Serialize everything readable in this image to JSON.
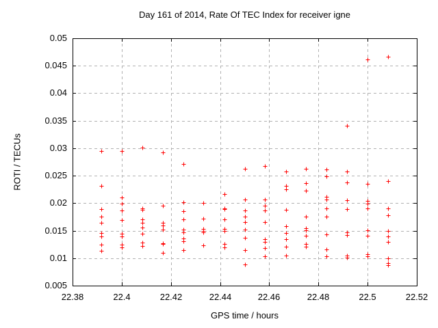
{
  "chart_data": {
    "type": "scatter",
    "title": "Day 161 of 2014, Rate Of TEC Index for receiver igne",
    "xlabel": "GPS time / hours",
    "ylabel": "ROTI / TECUs",
    "xlim": [
      22.38,
      22.52
    ],
    "ylim": [
      0.005,
      0.05
    ],
    "x_ticks": [
      22.38,
      22.4,
      22.42,
      22.44,
      22.46,
      22.48,
      22.5,
      22.52
    ],
    "x_tick_labels": [
      "22.38",
      "22.4",
      "22.42",
      "22.44",
      "22.46",
      "22.48",
      "22.5",
      "22.52"
    ],
    "y_ticks": [
      0.005,
      0.01,
      0.015,
      0.02,
      0.025,
      0.03,
      0.035,
      0.04,
      0.045,
      0.05
    ],
    "y_tick_labels": [
      "0.005",
      "0.01",
      "0.015",
      "0.02",
      "0.025",
      "0.03",
      "0.035",
      "0.04",
      "0.045",
      "0.05"
    ],
    "grid": true,
    "legend": "none",
    "marker": {
      "shape": "plus",
      "color": "#ff0000",
      "size": 7
    },
    "grid_color": "#b0b0b0",
    "border_color": "#000000",
    "series": [
      {
        "name": "ROTI",
        "points": [
          [
            22.3917,
            0.0295
          ],
          [
            22.3917,
            0.0231
          ],
          [
            22.3917,
            0.0189
          ],
          [
            22.3917,
            0.0176
          ],
          [
            22.3917,
            0.0164
          ],
          [
            22.3917,
            0.0146
          ],
          [
            22.3917,
            0.0139
          ],
          [
            22.3917,
            0.0125
          ],
          [
            22.3917,
            0.0113
          ],
          [
            22.4,
            0.0295
          ],
          [
            22.4,
            0.021
          ],
          [
            22.4,
            0.0199
          ],
          [
            22.4,
            0.0187
          ],
          [
            22.4,
            0.0169
          ],
          [
            22.4,
            0.0145
          ],
          [
            22.4,
            0.014
          ],
          [
            22.4,
            0.0125
          ],
          [
            22.4,
            0.012
          ],
          [
            22.4083,
            0.0301
          ],
          [
            22.4083,
            0.019
          ],
          [
            22.4083,
            0.0188
          ],
          [
            22.4083,
            0.0171
          ],
          [
            22.4083,
            0.0164
          ],
          [
            22.4083,
            0.0156
          ],
          [
            22.4083,
            0.0145
          ],
          [
            22.4083,
            0.0128
          ],
          [
            22.4083,
            0.0122
          ],
          [
            22.4167,
            0.0293
          ],
          [
            22.4167,
            0.0195
          ],
          [
            22.4167,
            0.0164
          ],
          [
            22.4167,
            0.0159
          ],
          [
            22.4167,
            0.0152
          ],
          [
            22.4167,
            0.0127
          ],
          [
            22.4167,
            0.0126
          ],
          [
            22.4167,
            0.011
          ],
          [
            22.425,
            0.0271
          ],
          [
            22.425,
            0.0202
          ],
          [
            22.425,
            0.0185
          ],
          [
            22.425,
            0.0171
          ],
          [
            22.425,
            0.0152
          ],
          [
            22.425,
            0.0147
          ],
          [
            22.425,
            0.0136
          ],
          [
            22.425,
            0.0131
          ],
          [
            22.425,
            0.0115
          ],
          [
            22.4333,
            0.0201
          ],
          [
            22.4333,
            0.0172
          ],
          [
            22.4333,
            0.0153
          ],
          [
            22.4333,
            0.0149
          ],
          [
            22.4333,
            0.0147
          ],
          [
            22.4333,
            0.0123
          ],
          [
            22.4417,
            0.0217
          ],
          [
            22.4417,
            0.0191
          ],
          [
            22.4417,
            0.0189
          ],
          [
            22.4417,
            0.0171
          ],
          [
            22.4417,
            0.0153
          ],
          [
            22.4417,
            0.015
          ],
          [
            22.4417,
            0.0126
          ],
          [
            22.4417,
            0.012
          ],
          [
            22.45,
            0.0262
          ],
          [
            22.45,
            0.0207
          ],
          [
            22.45,
            0.0187
          ],
          [
            22.45,
            0.0176
          ],
          [
            22.45,
            0.0165
          ],
          [
            22.45,
            0.0152
          ],
          [
            22.45,
            0.0137
          ],
          [
            22.45,
            0.0115
          ],
          [
            22.45,
            0.0088
          ],
          [
            22.4583,
            0.0268
          ],
          [
            22.4583,
            0.0207
          ],
          [
            22.4583,
            0.0196
          ],
          [
            22.4583,
            0.0187
          ],
          [
            22.4583,
            0.0165
          ],
          [
            22.4583,
            0.0134
          ],
          [
            22.4583,
            0.0129
          ],
          [
            22.4583,
            0.0118
          ],
          [
            22.4583,
            0.0104
          ],
          [
            22.4667,
            0.0257
          ],
          [
            22.4667,
            0.0231
          ],
          [
            22.4667,
            0.0225
          ],
          [
            22.4667,
            0.0188
          ],
          [
            22.4667,
            0.0158
          ],
          [
            22.4667,
            0.0146
          ],
          [
            22.4667,
            0.0134
          ],
          [
            22.4667,
            0.0121
          ],
          [
            22.4667,
            0.0105
          ],
          [
            22.475,
            0.0262
          ],
          [
            22.475,
            0.0237
          ],
          [
            22.475,
            0.0223
          ],
          [
            22.475,
            0.0176
          ],
          [
            22.475,
            0.0154
          ],
          [
            22.475,
            0.0151
          ],
          [
            22.475,
            0.0141
          ],
          [
            22.475,
            0.0126
          ],
          [
            22.475,
            0.0121
          ],
          [
            22.4833,
            0.0261
          ],
          [
            22.4833,
            0.0249
          ],
          [
            22.4833,
            0.0212
          ],
          [
            22.4833,
            0.0207
          ],
          [
            22.4833,
            0.019
          ],
          [
            22.4833,
            0.0176
          ],
          [
            22.4833,
            0.0143
          ],
          [
            22.4833,
            0.0116
          ],
          [
            22.4833,
            0.0103
          ],
          [
            22.4917,
            0.0341
          ],
          [
            22.4917,
            0.0257
          ],
          [
            22.4917,
            0.0238
          ],
          [
            22.4917,
            0.0206
          ],
          [
            22.4917,
            0.0189
          ],
          [
            22.4917,
            0.0147
          ],
          [
            22.4917,
            0.0142
          ],
          [
            22.4917,
            0.0105
          ],
          [
            22.4917,
            0.0101
          ],
          [
            22.5,
            0.0461
          ],
          [
            22.5,
            0.0235
          ],
          [
            22.5,
            0.0204
          ],
          [
            22.5,
            0.0199
          ],
          [
            22.5,
            0.019
          ],
          [
            22.5,
            0.0151
          ],
          [
            22.5,
            0.0141
          ],
          [
            22.5,
            0.0107
          ],
          [
            22.5,
            0.0103
          ],
          [
            22.5083,
            0.0466
          ],
          [
            22.5083,
            0.024
          ],
          [
            22.5083,
            0.019
          ],
          [
            22.5083,
            0.0178
          ],
          [
            22.5083,
            0.015
          ],
          [
            22.5083,
            0.0139
          ],
          [
            22.5083,
            0.013
          ],
          [
            22.5083,
            0.01
          ],
          [
            22.5083,
            0.0091
          ],
          [
            22.5083,
            0.0087
          ]
        ]
      }
    ]
  }
}
